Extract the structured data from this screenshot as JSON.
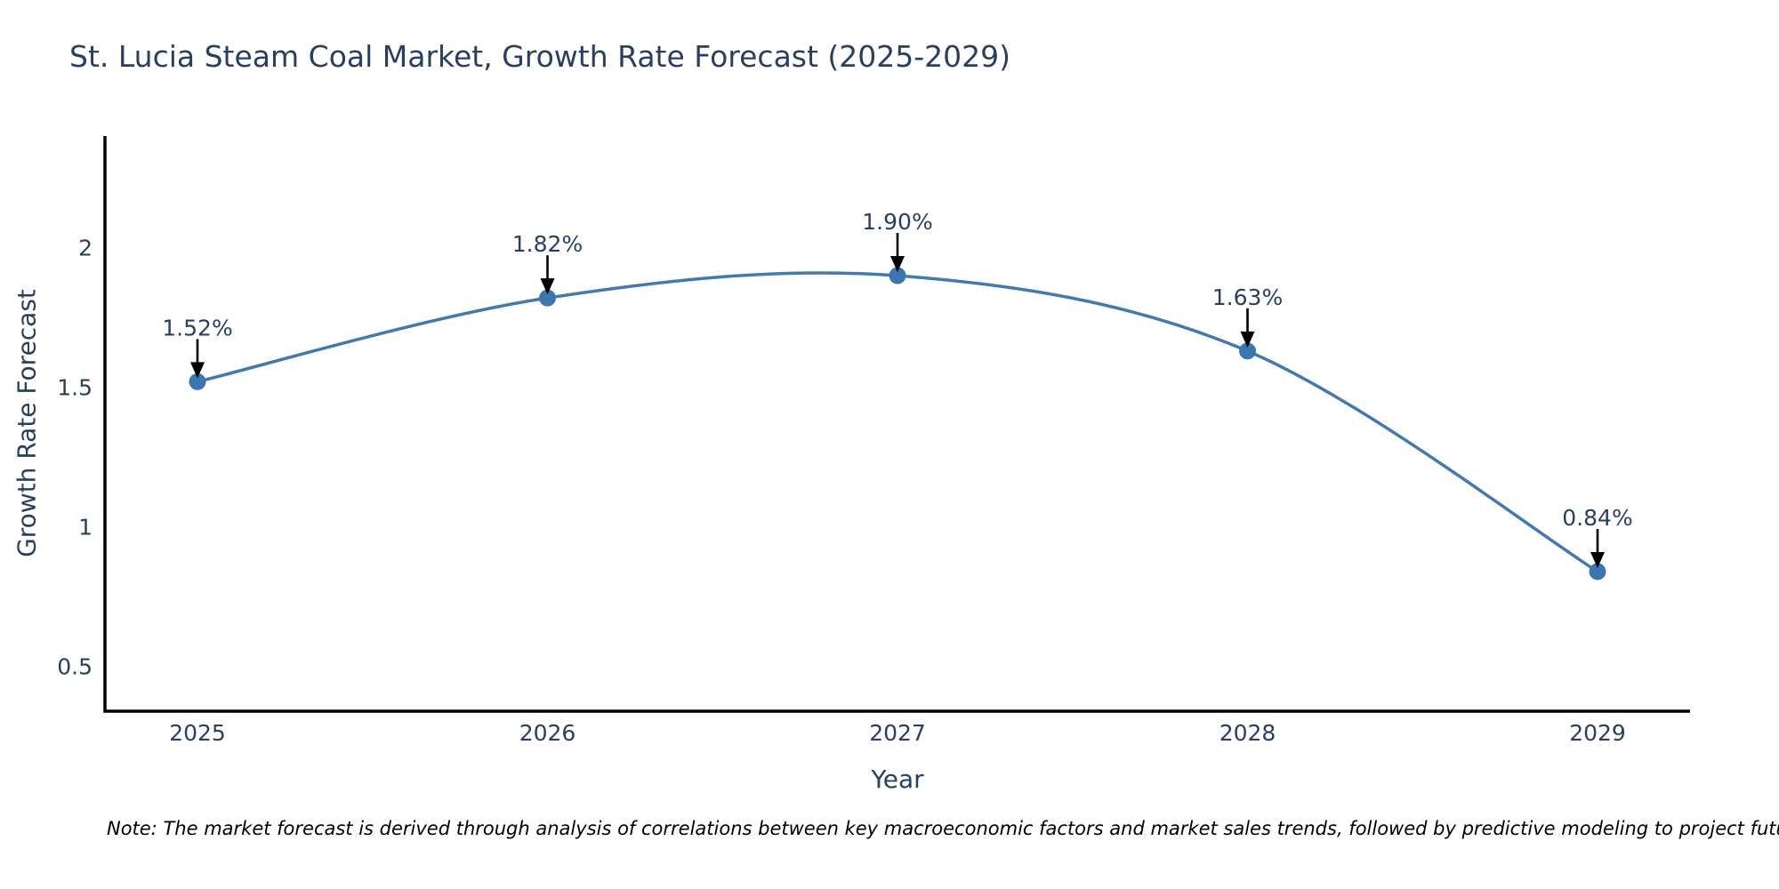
{
  "title": "St. Lucia Steam Coal Market, Growth Rate Forecast (2025-2029)",
  "note": "Note: The market forecast is derived through analysis of correlations between key macroeconomic factors and market sales trends, followed by predictive modeling to project future sales",
  "colors": {
    "line": "#4379ad",
    "marker": "#3c76ae",
    "axis": "#000000",
    "arrow": "#000000",
    "text": "#2a3f5f",
    "note_text": "#000000",
    "background": "#ffffff"
  },
  "chart_data": {
    "type": "line",
    "title": "St. Lucia Steam Coal Market, Growth Rate Forecast (2025-2029)",
    "xlabel": "Year",
    "ylabel": "Growth Rate Forecast",
    "categories": [
      "2025",
      "2026",
      "2027",
      "2028",
      "2029"
    ],
    "x": [
      2025,
      2026,
      2027,
      2028,
      2029
    ],
    "values": [
      1.52,
      1.82,
      1.9,
      1.63,
      0.84
    ],
    "point_labels": [
      "1.52%",
      "1.82%",
      "1.90%",
      "1.63%",
      "0.84%"
    ],
    "yticks": [
      0.5,
      1,
      1.5,
      2
    ],
    "ytick_labels": [
      "0.5",
      "1",
      "1.5",
      "2"
    ],
    "ylim": [
      0.34,
      2.4
    ],
    "line_shape": "spline",
    "grid": false,
    "legend": false,
    "annotation_style": "black-arrow-down-to-point"
  }
}
